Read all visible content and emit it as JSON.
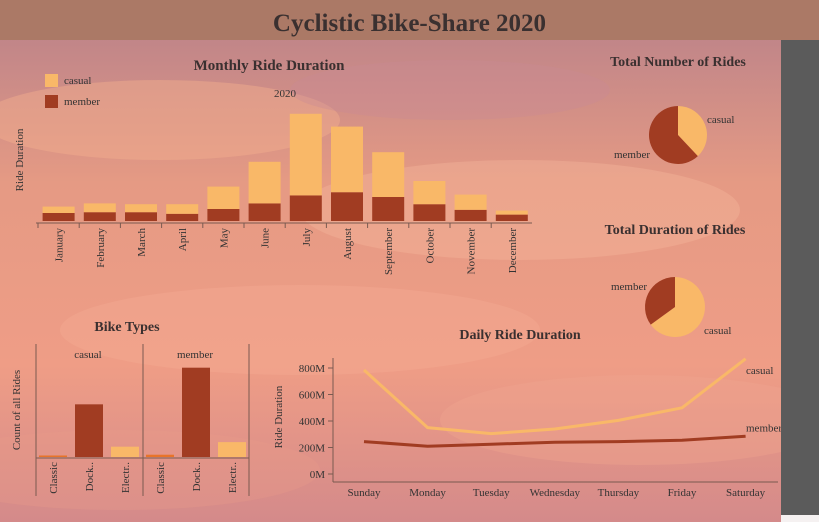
{
  "dashboard_title": "Cyclistic Bike-Share 2020",
  "colors": {
    "casual": "#f9b868",
    "member": "#a13c22",
    "electric_highlight": "#e8742a",
    "sidebar": "#5b5b5b"
  },
  "chart_data": [
    {
      "id": "monthly",
      "type": "bar",
      "title": "Monthly Ride Duration",
      "subtitle": "2020",
      "ylabel": "Ride Duration",
      "stacked": true,
      "legend": [
        "casual",
        "member"
      ],
      "categories": [
        "January",
        "February",
        "March",
        "April",
        "May",
        "June",
        "July",
        "August",
        "September",
        "October",
        "November",
        "December"
      ],
      "series": [
        {
          "name": "member",
          "values": [
            50,
            55,
            55,
            45,
            75,
            110,
            160,
            180,
            150,
            105,
            70,
            40
          ]
        },
        {
          "name": "casual",
          "values": [
            40,
            55,
            50,
            60,
            140,
            260,
            510,
            410,
            280,
            145,
            95,
            25
          ]
        }
      ]
    },
    {
      "id": "total_rides",
      "type": "pie",
      "title": "Total Number of Rides",
      "slices": [
        {
          "label": "casual",
          "value": 38
        },
        {
          "label": "member",
          "value": 62
        }
      ]
    },
    {
      "id": "total_duration",
      "type": "pie",
      "title": "Total Duration of Rides",
      "slices": [
        {
          "label": "casual",
          "value": 65
        },
        {
          "label": "member",
          "value": 35
        }
      ]
    },
    {
      "id": "bike_types",
      "type": "bar",
      "title": "Bike Types",
      "ylabel": "Count of all Rides",
      "panels": [
        {
          "name": "casual",
          "categories": [
            "Classic",
            "Dock..",
            "Electr.."
          ],
          "values": [
            1,
            46,
            9
          ]
        },
        {
          "name": "member",
          "categories": [
            "Classic",
            "Dock..",
            "Electr.."
          ],
          "values": [
            2,
            78,
            13
          ]
        }
      ]
    },
    {
      "id": "daily",
      "type": "line",
      "title": "Daily Ride Duration",
      "ylabel": "Ride Duration",
      "categories": [
        "Sunday",
        "Monday",
        "Tuesday",
        "Wednesday",
        "Thursday",
        "Friday",
        "Saturday"
      ],
      "ylim": [
        0,
        900
      ],
      "yticks": [
        "0M",
        "200M",
        "400M",
        "600M",
        "800M"
      ],
      "ytick_values": [
        0,
        200,
        400,
        600,
        800
      ],
      "series": [
        {
          "name": "casual",
          "values": [
            830,
            395,
            350,
            385,
            450,
            545,
            915
          ]
        },
        {
          "name": "member",
          "values": [
            290,
            255,
            270,
            285,
            290,
            300,
            330
          ]
        }
      ]
    }
  ]
}
